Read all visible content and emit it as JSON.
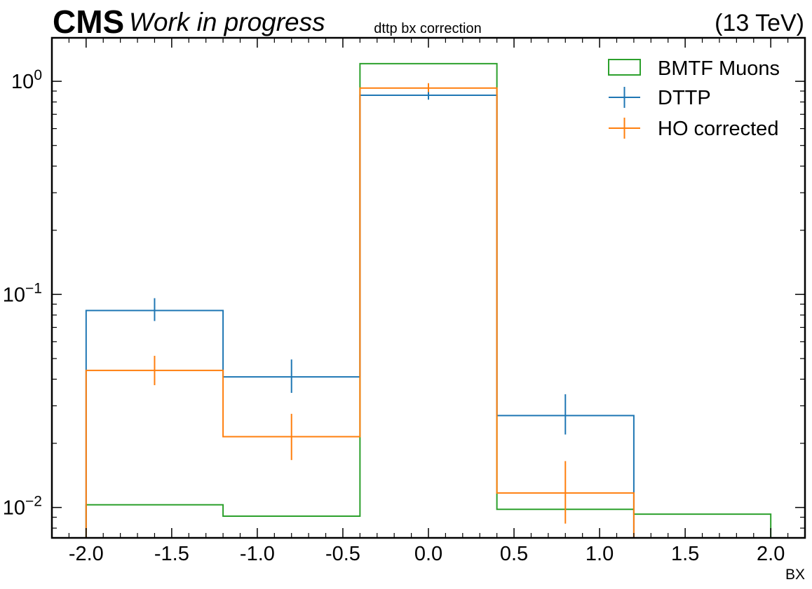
{
  "header": {
    "experiment": "CMS",
    "status": "Work in progress",
    "energy": "(13 TeV)"
  },
  "chart_data": {
    "type": "histogram",
    "title": "dttp bx correction",
    "xlabel": "BX",
    "ylabel": "",
    "xlim": [
      -2.2,
      2.2
    ],
    "ylim": [
      0.0072,
      1.6
    ],
    "yscale": "log",
    "grid": false,
    "legend_position": "top-right",
    "x_ticks": [
      "-2.0",
      "-1.5",
      "-1.0",
      "-0.5",
      "0.0",
      "0.5",
      "1.0",
      "1.5",
      "2.0"
    ],
    "y_ticks": [
      {
        "base": "10",
        "exp": "0"
      },
      {
        "base": "10",
        "exp": "−1"
      },
      {
        "base": "10",
        "exp": "−2"
      }
    ],
    "bin_edges": [
      -2.0,
      -1.2,
      -0.4,
      0.4,
      1.2,
      2.0
    ],
    "series": [
      {
        "name": "BMTF Muons",
        "style": "step",
        "color": "#2ca02c",
        "values": [
          0.0103,
          0.0091,
          1.21,
          0.0098,
          0.0093
        ]
      },
      {
        "name": "DTTP",
        "style": "errorbar-step",
        "color": "#1f77b4",
        "values": [
          0.084,
          0.041,
          0.86,
          0.027,
          null
        ],
        "err_low": [
          0.009,
          0.0065,
          0.04,
          0.005,
          null
        ],
        "err_high": [
          0.012,
          0.0085,
          0.05,
          0.007,
          null
        ]
      },
      {
        "name": "HO corrected",
        "style": "errorbar-step",
        "color": "#ff7f0e",
        "values": [
          0.044,
          0.0215,
          0.93,
          0.0117,
          null
        ],
        "err_low": [
          0.0065,
          0.0048,
          0.04,
          0.0033,
          null
        ],
        "err_high": [
          0.0075,
          0.006,
          0.05,
          0.0048,
          null
        ]
      }
    ]
  }
}
